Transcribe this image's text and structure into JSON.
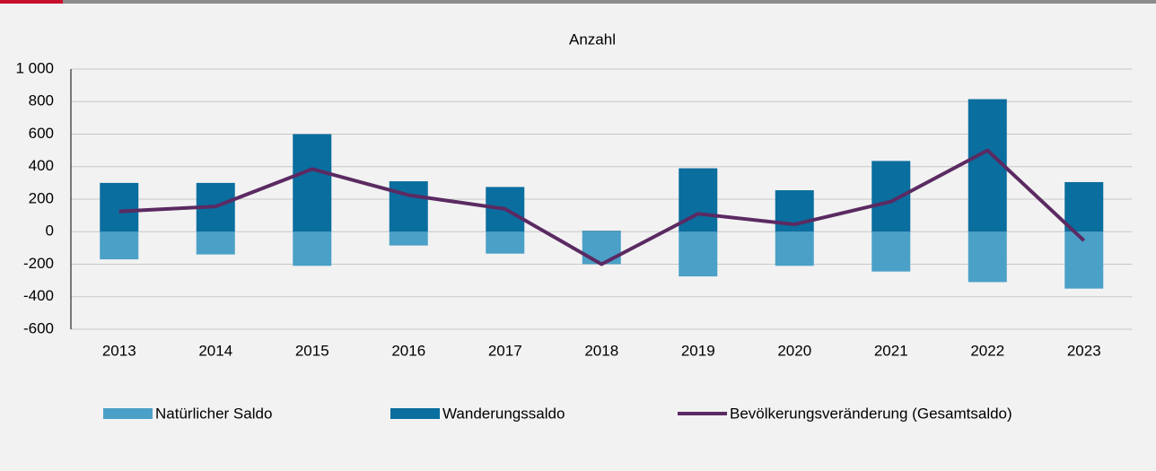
{
  "chart_data": {
    "type": "bar_line",
    "title": "Anzahl",
    "categories": [
      "2013",
      "2014",
      "2015",
      "2016",
      "2017",
      "2018",
      "2019",
      "2020",
      "2021",
      "2022",
      "2023"
    ],
    "series": [
      {
        "name": "Natürlicher Saldo",
        "color": "#4ba0c7",
        "type": "bar",
        "values": [
          -170,
          -140,
          -210,
          -85,
          -135,
          -200,
          -275,
          -210,
          -245,
          -310,
          -350
        ]
      },
      {
        "name": "Wanderungssaldo",
        "color": "#0a6e9e",
        "type": "bar",
        "values": [
          300,
          300,
          600,
          310,
          275,
          5,
          390,
          255,
          435,
          815,
          305
        ]
      },
      {
        "name": "Bevölkerungsveränderung (Gesamtsaldo)",
        "color": "#5b2a62",
        "type": "line",
        "values": [
          125,
          155,
          385,
          225,
          140,
          -200,
          110,
          45,
          185,
          500,
          -55
        ]
      }
    ],
    "ylim": [
      -600,
      1000
    ],
    "yticks": [
      -600,
      -400,
      -200,
      0,
      200,
      400,
      600,
      800,
      {
        "value": 1000,
        "label": "1 000"
      }
    ],
    "grid": true
  }
}
